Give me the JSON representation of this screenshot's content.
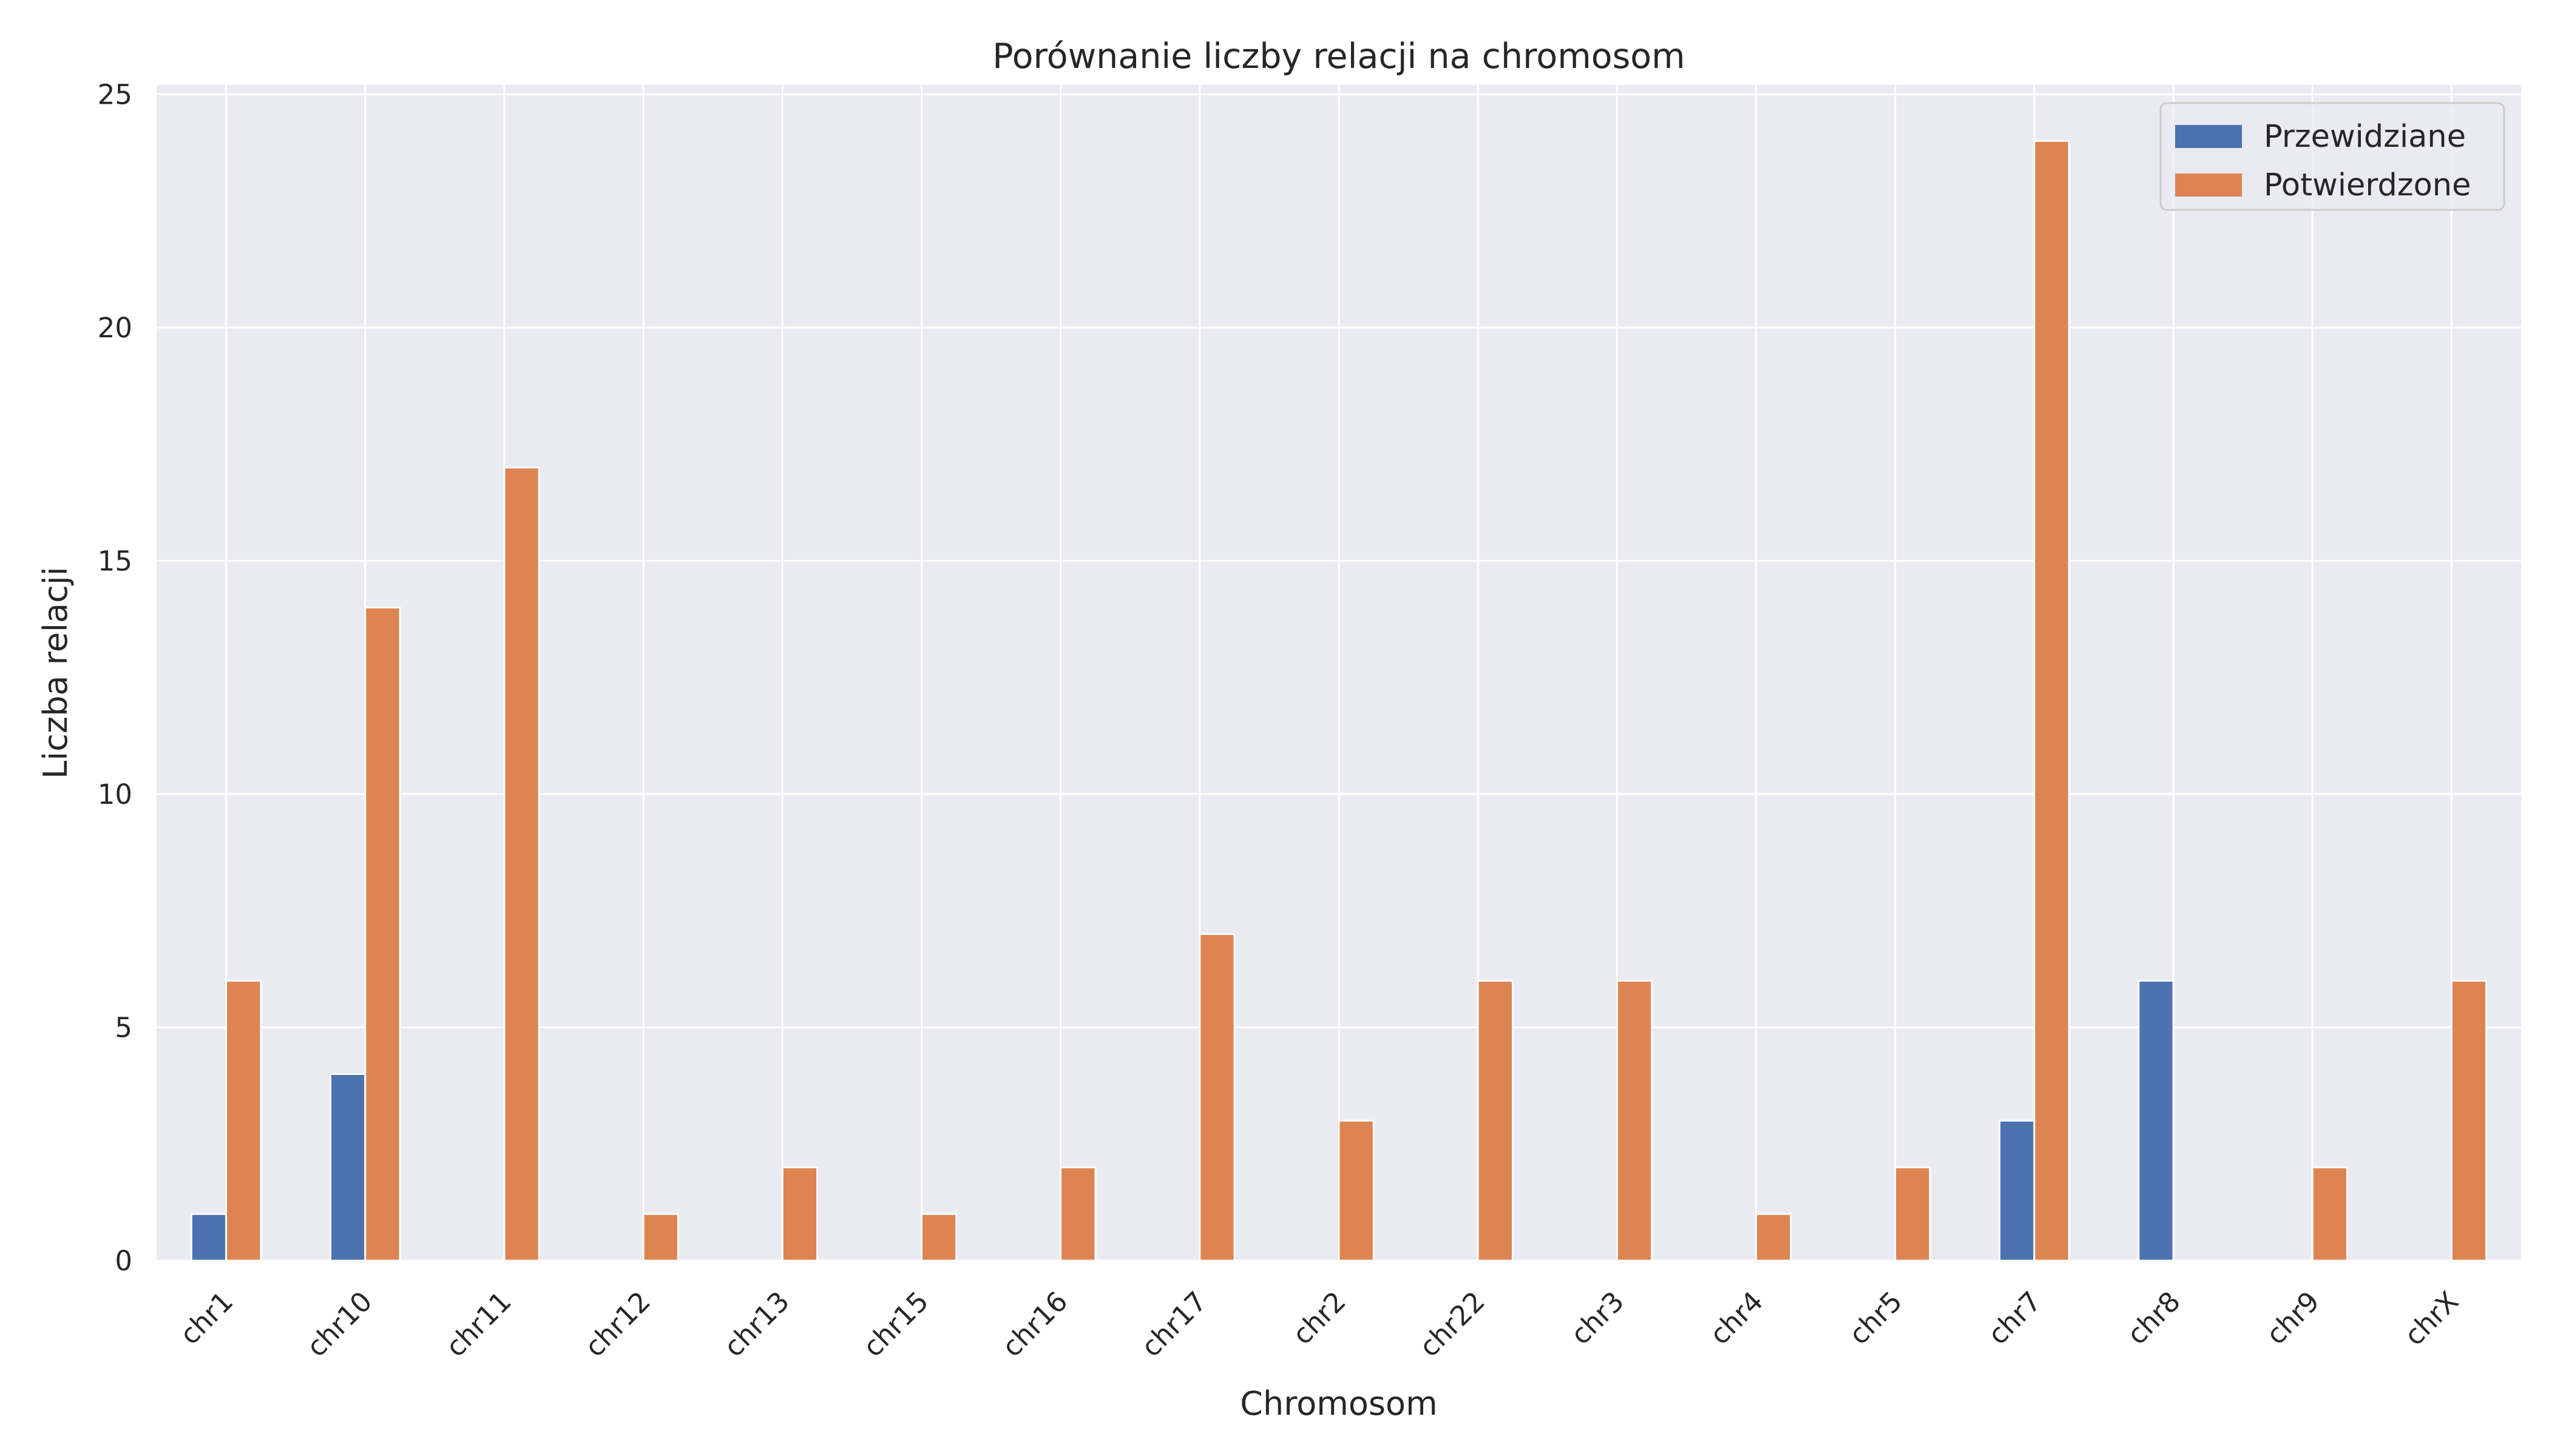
{
  "chart_data": {
    "type": "bar",
    "title": "Porównanie liczby relacji na chromosom",
    "xlabel": "Chromosom",
    "ylabel": "Liczba relacji",
    "categories": [
      "chr1",
      "chr10",
      "chr11",
      "chr12",
      "chr13",
      "chr15",
      "chr16",
      "chr17",
      "chr2",
      "chr22",
      "chr3",
      "chr4",
      "chr5",
      "chr7",
      "chr8",
      "chr9",
      "chrX"
    ],
    "series": [
      {
        "name": "Przewidziane",
        "color": "#4c72b0",
        "values": [
          1,
          4,
          0,
          0,
          0,
          0,
          0,
          0,
          0,
          0,
          0,
          0,
          0,
          3,
          6,
          0,
          0
        ]
      },
      {
        "name": "Potwierdzone",
        "color": "#dd8452",
        "values": [
          6,
          14,
          17,
          1,
          2,
          1,
          2,
          7,
          3,
          6,
          6,
          1,
          2,
          24,
          0,
          2,
          6
        ]
      }
    ],
    "ylim": [
      0,
      25.2
    ],
    "yticks": [
      0,
      5,
      10,
      15,
      20,
      25
    ],
    "grid": true,
    "legend": "top-right",
    "background": "#eaeaf2",
    "grid_color": "#ffffff"
  }
}
